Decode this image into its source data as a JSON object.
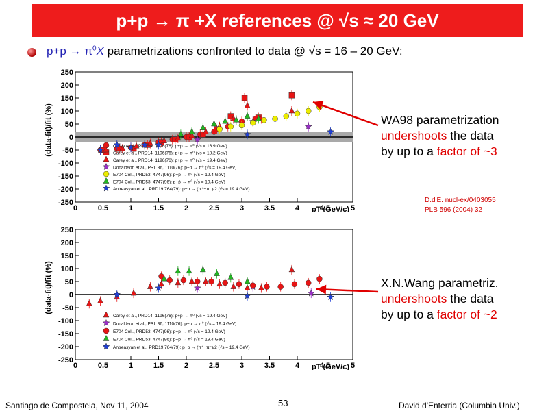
{
  "slide": {
    "title": "p+p → π +X references @ √s ≈ 20 GeV",
    "bullet_prefix": "p+p → π",
    "bullet_sup": "0",
    "bullet_x": "X",
    "bullet_suffix": " parametrizations confronted to data @ √s = 16 – 20 GeV:",
    "annotation_1": {
      "line1": "WA98 parametrization",
      "line2_red": "undershoots",
      "line2_rest": " the data",
      "line3_pre": "by up to a ",
      "line3_red": "factor of ~3"
    },
    "annotation_2": {
      "line1": "X.N.Wang parametriz.",
      "line2_red": "undershoots",
      "line2_rest": " the data",
      "line3_pre": "by up to a ",
      "line3_red": "factor of ~2"
    },
    "reference_1": "D.d'E. nucl-ex/0403055",
    "reference_2": "PLB 596 (2004) 32",
    "footer_left": "Santiago de Compostela, Nov 11, 2004",
    "footer_center": "53",
    "footer_right": "David d'Enterria (Columbia Univ.)",
    "colors": {
      "title_bg": "#ee1c1c",
      "title_text": "#ffffff",
      "accent_red": "#e00000",
      "accent_blue": "#2323b4"
    }
  },
  "chart_data": [
    {
      "type": "scatter",
      "ylabel": "(data-fit)/fit (%)",
      "xlabel": "pT (GeV/c)",
      "xlim": [
        0,
        5
      ],
      "ylim": [
        -250,
        250
      ],
      "xticks": [
        "0",
        "0.5",
        "1",
        "1.5",
        "2",
        "2.5",
        "3",
        "3.5",
        "4",
        "4.5",
        "5"
      ],
      "yticks": [
        "-250",
        "-200",
        "-150",
        "-100",
        "-50",
        "0",
        "50",
        "100",
        "150",
        "200",
        "250"
      ],
      "uncertainty_band": [
        -20,
        20
      ],
      "series": [
        {
          "name": "Carey et al., PRD14, 1196(76): p+p → π⁰ (√s = 16.9 GeV)",
          "marker": "circle",
          "color": "#e81414",
          "x": [
            0.45,
            0.75,
            1.0,
            1.25,
            1.5,
            1.75,
            2.0,
            2.25,
            2.5,
            2.75,
            3.0,
            3.25
          ],
          "y": [
            -50,
            -45,
            -40,
            -30,
            -20,
            -10,
            0,
            10,
            20,
            40,
            60,
            70
          ]
        },
        {
          "name": "Carey et al., PRD14, 1196(76): p+p → π⁰ (√s = 18.2 GeV)",
          "marker": "square",
          "color": "#e81414",
          "x": [
            0.5,
            0.8,
            1.05,
            1.3,
            1.55,
            1.8,
            2.05,
            2.3,
            2.55,
            2.8,
            3.05,
            3.3,
            3.9
          ],
          "y": [
            -50,
            -45,
            -45,
            -30,
            -20,
            -10,
            0,
            10,
            30,
            80,
            150,
            75,
            160
          ]
        },
        {
          "name": "Carey et al., PRD14, 1196(76): p+p → π⁰ (√s = 19.4 GeV)",
          "marker": "triangle",
          "color": "#e81414",
          "x": [
            0.55,
            0.85,
            1.1,
            1.35,
            1.6,
            1.85,
            2.1,
            2.35,
            2.6,
            2.85,
            3.1,
            3.35,
            3.9
          ],
          "y": [
            -50,
            -45,
            -35,
            -25,
            -15,
            -5,
            5,
            20,
            40,
            70,
            120,
            70,
            100
          ]
        },
        {
          "name": "Donaldson et al., PRL 36, 1110(76): p+p → π⁰ (√s = 19.4 GeV)",
          "marker": "star",
          "color": "#9b30c8",
          "x": [
            2.2,
            3.2,
            4.2
          ],
          "y": [
            -10,
            60,
            40
          ]
        },
        {
          "name": "E704 Coll., PRD53, 4747(96): p+p → π⁰ (√s = 19.4 GeV)",
          "marker": "circle",
          "color": "#ecec00",
          "x": [
            2.6,
            2.8,
            3.0,
            3.2,
            3.4,
            3.6,
            3.8,
            4.0,
            4.2,
            4.4
          ],
          "y": [
            30,
            40,
            45,
            55,
            65,
            70,
            80,
            90,
            100,
            115
          ]
        },
        {
          "name": "E704 Coll., PRD53, 4747(96): p+p̄ → π⁰ (√s = 19.4 GeV)",
          "marker": "triangle",
          "color": "#22b822",
          "x": [
            1.9,
            2.1,
            2.3,
            2.5,
            2.7,
            2.9,
            3.1,
            3.3
          ],
          "y": [
            10,
            20,
            35,
            50,
            60,
            65,
            80,
            70
          ]
        },
        {
          "name": "Antreasyan et al., PRD19,764(79): p+p → (π⁺+π⁻)/2 (√s = 19.4 GeV)",
          "marker": "star",
          "color": "#1f3fd6",
          "x": [
            0.45,
            0.75,
            1.0,
            1.25,
            1.5,
            3.1,
            4.6
          ],
          "y": [
            -50,
            -30,
            -40,
            -30,
            -30,
            10,
            20
          ]
        }
      ]
    },
    {
      "type": "scatter",
      "ylabel": "(data-fit)/fit (%)",
      "xlabel": "pT (GeV/c)",
      "xlim": [
        0,
        5
      ],
      "ylim": [
        -250,
        250
      ],
      "xticks": [
        "0",
        "0.5",
        "1",
        "1.5",
        "2",
        "2.5",
        "3",
        "3.5",
        "4",
        "4.5",
        "5"
      ],
      "yticks": [
        "-250",
        "-200",
        "-150",
        "-100",
        "-50",
        "0",
        "50",
        "100",
        "150",
        "200",
        "250"
      ],
      "series": [
        {
          "name": "Carey et al., PRD14, 1196(76): p+p → π⁰ (√s = 19.4 GeV)",
          "marker": "triangle",
          "color": "#e81414",
          "x": [
            0.25,
            0.45,
            0.75,
            1.05,
            1.35,
            1.55,
            1.85,
            2.1,
            2.35,
            2.6,
            2.85,
            3.1,
            3.35,
            3.9
          ],
          "y": [
            -35,
            -25,
            -10,
            5,
            30,
            40,
            45,
            50,
            50,
            40,
            30,
            25,
            25,
            95
          ]
        },
        {
          "name": "Donaldson et al., PRL 36, 1110(76): p+p → π⁰ (√s = 19.4 GeV)",
          "marker": "star",
          "color": "#9b30c8",
          "x": [
            2.2,
            3.2,
            4.25
          ],
          "y": [
            25,
            30,
            5
          ]
        },
        {
          "name": "E704 Coll., PRD53, 4747(96): p+p → π⁰ (√s = 19.4 GeV)",
          "marker": "circle",
          "color": "#e81414",
          "x": [
            1.55,
            1.7,
            1.95,
            2.2,
            2.45,
            2.7,
            2.95,
            3.2,
            3.45,
            3.7,
            3.95,
            4.2,
            4.4
          ],
          "y": [
            70,
            55,
            55,
            50,
            50,
            45,
            40,
            35,
            30,
            30,
            40,
            45,
            60
          ]
        },
        {
          "name": "E704 Coll., PRD53, 4747(96): p+p̄ → π⁰ (√s = 19.4 GeV)",
          "marker": "triangle",
          "color": "#22b822",
          "x": [
            1.6,
            1.85,
            2.05,
            2.3,
            2.55,
            2.8,
            3.1
          ],
          "y": [
            60,
            90,
            90,
            95,
            80,
            65,
            50
          ]
        },
        {
          "name": "Antreasyan et al., PRD19,764(79): p+p → (π⁺+π⁻)/2 (√s = 19.4 GeV)",
          "marker": "star",
          "color": "#1f3fd6",
          "x": [
            0.75,
            1.5,
            3.1,
            4.6
          ],
          "y": [
            0,
            25,
            -5,
            -10
          ]
        }
      ]
    }
  ]
}
